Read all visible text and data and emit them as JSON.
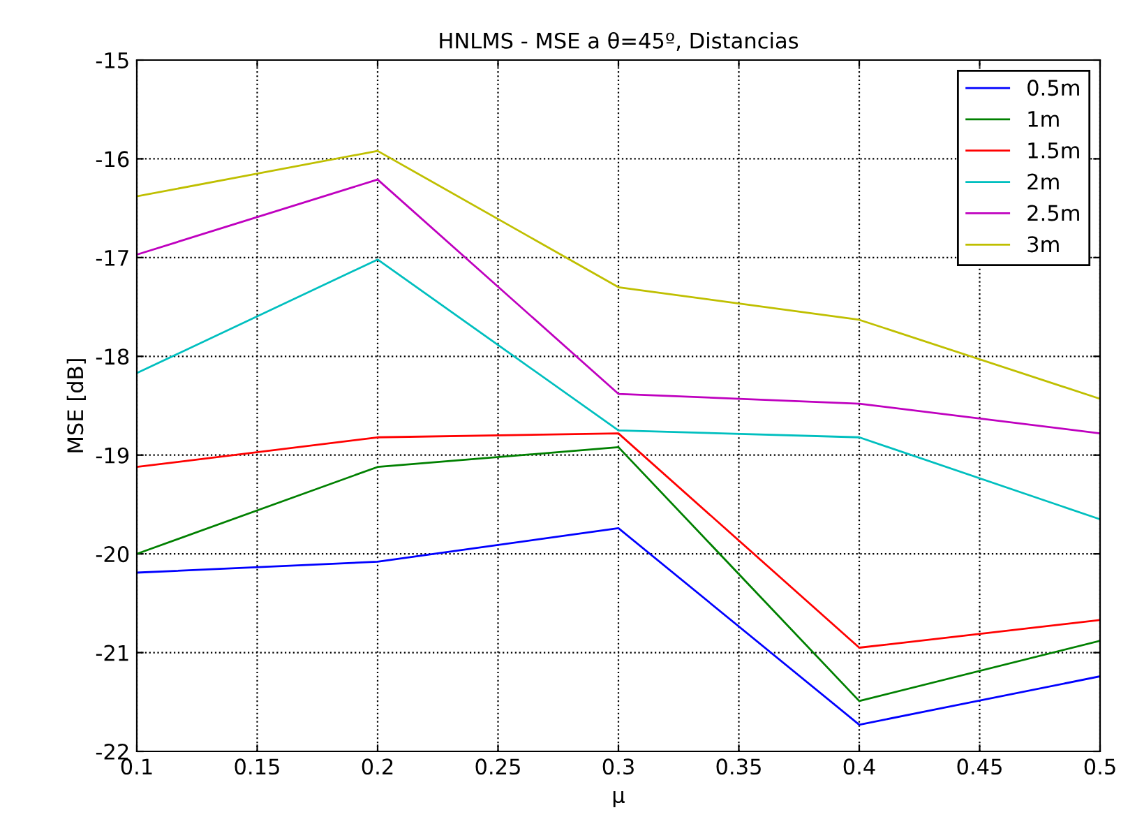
{
  "chart_data": {
    "type": "line",
    "title": "HNLMS - MSE a θ=45º, Distancias",
    "xlabel": "μ",
    "ylabel": "MSE [dB]",
    "x": [
      0.1,
      0.2,
      0.3,
      0.4,
      0.5
    ],
    "xlim": [
      0.1,
      0.5
    ],
    "xticks": [
      0.1,
      0.15,
      0.2,
      0.25,
      0.3,
      0.35,
      0.4,
      0.45,
      0.5
    ],
    "ylim": [
      -22,
      -15
    ],
    "yticks": [
      -22,
      -21,
      -20,
      -19,
      -18,
      -17,
      -16,
      -15
    ],
    "grid": true,
    "legend": "top right",
    "line_style": "solid",
    "series": [
      {
        "name": "0.5m",
        "color": "#0000ff",
        "values": [
          -20.19,
          -20.08,
          -19.74,
          -21.73,
          -21.24
        ]
      },
      {
        "name": "1m",
        "color": "#008000",
        "values": [
          -20.0,
          -19.12,
          -18.92,
          -21.49,
          -20.88
        ]
      },
      {
        "name": "1.5m",
        "color": "#ff0000",
        "values": [
          -19.12,
          -18.82,
          -18.78,
          -20.95,
          -20.67
        ]
      },
      {
        "name": "2m",
        "color": "#00bfbf",
        "values": [
          -18.17,
          -17.02,
          -18.75,
          -18.82,
          -19.65
        ]
      },
      {
        "name": "2.5m",
        "color": "#bf00bf",
        "values": [
          -16.97,
          -16.21,
          -18.38,
          -18.48,
          -18.78
        ]
      },
      {
        "name": "3m",
        "color": "#bfbf00",
        "values": [
          -16.38,
          -15.92,
          -17.3,
          -17.63,
          -18.43
        ]
      }
    ]
  }
}
